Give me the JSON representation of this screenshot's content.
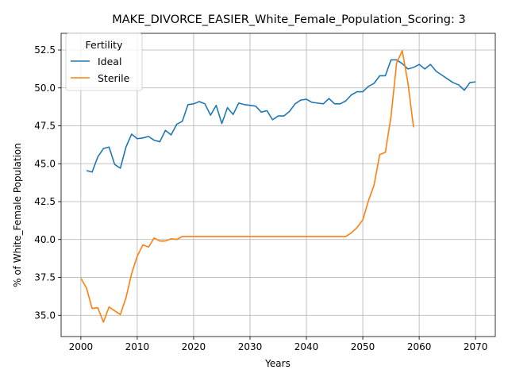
{
  "chart_data": {
    "type": "line",
    "title": "MAKE_DIVORCE_EASIER_White_Female_Population_Scoring: 3",
    "xlabel": "Years",
    "ylabel": "% of White_Female Population",
    "xlim": [
      1996.5,
      2073.5
    ],
    "ylim": [
      33.6,
      53.6
    ],
    "xticks": [
      2000,
      2010,
      2020,
      2030,
      2040,
      2050,
      2060,
      2070
    ],
    "yticks": [
      35.0,
      37.5,
      40.0,
      42.5,
      45.0,
      47.5,
      50.0,
      52.5
    ],
    "ytick_labels": [
      "35.0",
      "37.5",
      "40.0",
      "42.5",
      "45.0",
      "47.5",
      "50.0",
      "52.5"
    ],
    "grid": true,
    "legend": {
      "title": "Fertility",
      "placement": "top-left"
    },
    "series": [
      {
        "name": "Ideal",
        "color": "#1f77b4",
        "x": [
          2001,
          2002,
          2003,
          2004,
          2005,
          2006,
          2007,
          2008,
          2009,
          2010,
          2011,
          2012,
          2013,
          2014,
          2015,
          2016,
          2017,
          2018,
          2019,
          2020,
          2021,
          2022,
          2023,
          2024,
          2025,
          2026,
          2027,
          2028,
          2029,
          2030,
          2031,
          2032,
          2033,
          2034,
          2035,
          2036,
          2037,
          2038,
          2039,
          2040,
          2041,
          2042,
          2043,
          2044,
          2045,
          2046,
          2047,
          2048,
          2049,
          2050,
          2051,
          2052,
          2053,
          2054,
          2055,
          2056,
          2057,
          2058,
          2059,
          2060,
          2061,
          2062,
          2063,
          2064,
          2065,
          2066,
          2067,
          2068,
          2069,
          2070
        ],
        "values": [
          44.55,
          44.45,
          45.45,
          46.0,
          46.1,
          44.95,
          44.7,
          46.1,
          46.95,
          46.65,
          46.7,
          46.8,
          46.55,
          46.45,
          47.2,
          46.9,
          47.6,
          47.8,
          48.9,
          48.95,
          49.1,
          48.95,
          48.2,
          48.85,
          47.65,
          48.7,
          48.25,
          49.0,
          48.9,
          48.85,
          48.8,
          48.4,
          48.5,
          47.9,
          48.15,
          48.15,
          48.45,
          48.95,
          49.2,
          49.25,
          49.05,
          49.0,
          48.95,
          49.3,
          48.95,
          48.95,
          49.15,
          49.55,
          49.75,
          49.75,
          50.1,
          50.3,
          50.8,
          50.8,
          51.85,
          51.85,
          51.6,
          51.25,
          51.35,
          51.55,
          51.25,
          51.55,
          51.1,
          50.85,
          50.6,
          50.35,
          50.2,
          49.85,
          50.35,
          50.4
        ]
      },
      {
        "name": "Sterile",
        "color": "#ff7f0e",
        "x": [
          2000,
          2001,
          2002,
          2003,
          2004,
          2005,
          2006,
          2007,
          2008,
          2009,
          2010,
          2011,
          2012,
          2013,
          2014,
          2015,
          2016,
          2017,
          2018,
          2019,
          2020,
          2021,
          2022,
          2023,
          2024,
          2025,
          2026,
          2027,
          2028,
          2029,
          2030,
          2031,
          2032,
          2033,
          2034,
          2035,
          2036,
          2037,
          2038,
          2039,
          2040,
          2041,
          2042,
          2043,
          2044,
          2045,
          2046,
          2047,
          2048,
          2049,
          2050,
          2051,
          2052,
          2053,
          2054,
          2055,
          2056,
          2057,
          2058,
          2059
        ],
        "values": [
          37.45,
          36.8,
          35.45,
          35.5,
          34.55,
          35.55,
          35.3,
          35.05,
          36.15,
          37.75,
          38.9,
          39.65,
          39.5,
          40.1,
          39.9,
          39.9,
          40.05,
          40.0,
          40.2,
          40.2,
          40.2,
          40.2,
          40.2,
          40.2,
          40.2,
          40.2,
          40.2,
          40.2,
          40.2,
          40.2,
          40.2,
          40.2,
          40.2,
          40.2,
          40.2,
          40.2,
          40.2,
          40.2,
          40.2,
          40.2,
          40.2,
          40.2,
          40.2,
          40.2,
          40.2,
          40.2,
          40.2,
          40.2,
          40.45,
          40.8,
          41.3,
          42.55,
          43.6,
          45.6,
          45.75,
          48.1,
          51.65,
          52.45,
          50.35,
          47.4
        ]
      }
    ]
  }
}
